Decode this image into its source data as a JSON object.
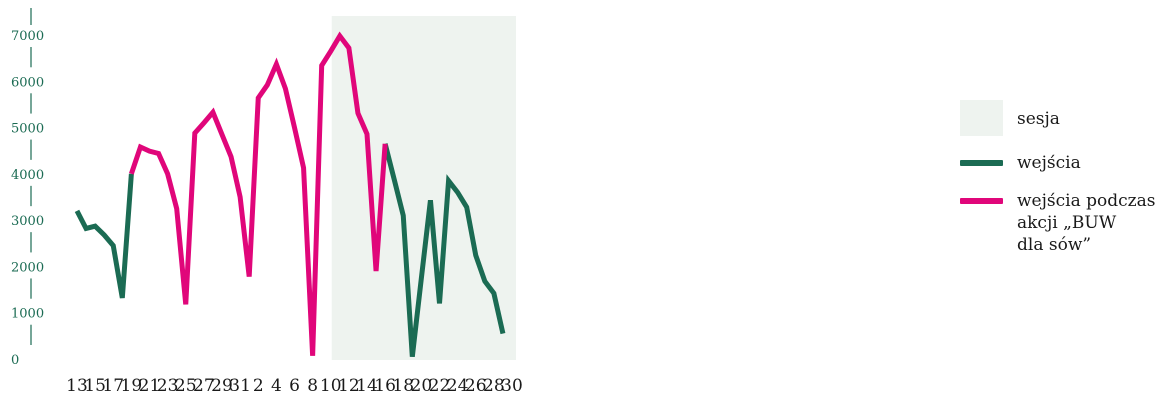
{
  "chart_data": {
    "type": "line",
    "title": "",
    "xlabel": "",
    "ylabel": "",
    "x_labels": [
      "13",
      "15",
      "17",
      "19",
      "21",
      "23",
      "25",
      "27",
      "29",
      "31",
      "2",
      "4",
      "6",
      "8",
      "10",
      "12",
      "14",
      "16",
      "18",
      "20",
      "22",
      "24",
      "26",
      "28",
      "30"
    ],
    "y_ticks": [
      "0",
      "1000",
      "2000",
      "3000",
      "4000",
      "5000",
      "6000",
      "7000"
    ],
    "ylim": [
      0,
      7000
    ],
    "session_shading": {
      "label": "sesja",
      "from_index": 28,
      "to_index": 48,
      "color": "#eef3ef"
    },
    "series": [
      {
        "name": "wejścia",
        "color": "#1b6b53",
        "segments": [
          {
            "start_index": 0,
            "values": [
              3200,
              2820,
              2870,
              2680,
              2450,
              1320,
              4000
            ]
          },
          {
            "start_index": 34,
            "values": [
              4650,
              3880,
              3100,
              50,
              1750,
              3430,
              1200,
              3850,
              3600,
              3280,
              2240,
              1680,
              1420,
              550
            ]
          }
        ]
      },
      {
        "name": "wejścia podczas akcji „BUW dla sów”",
        "color": "#e0067a",
        "segments": [
          {
            "start_index": 6,
            "values": [
              4000,
              4580,
              4490,
              4440,
              4000,
              3250,
              1180,
              4880,
              5100,
              5330,
              4850,
              4370,
              3500,
              1780,
              5640,
              5920,
              6370,
              5840,
              5000,
              4130,
              70,
              6340,
              6650,
              6980,
              6720,
              5310,
              4860,
              1900,
              4650
            ]
          }
        ]
      }
    ],
    "legend": {
      "session": "sesja",
      "entries": "wejścia",
      "action_line1": "wejścia podczas",
      "action_line2": "akcji „BUW",
      "action_line3": "dla sów”"
    }
  }
}
